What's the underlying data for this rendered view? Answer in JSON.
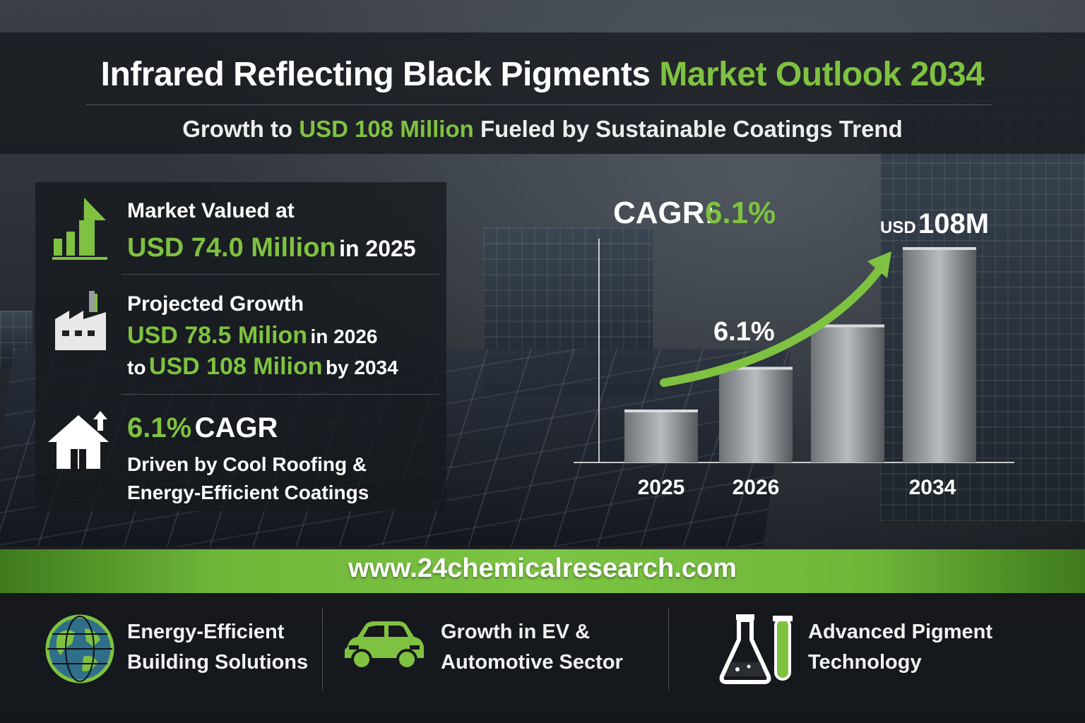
{
  "title": {
    "part1": "Infrared Reflecting Black Pigments",
    "part2": "Market Outlook 2034"
  },
  "subtitle": {
    "pre": "Growth to",
    "highlight": "USD 108 Million",
    "post": "Fueled by Sustainable Coatings Trend"
  },
  "stats": {
    "valued_label": "Market Valued at",
    "valued_value": "USD 74.0 Million",
    "valued_year": "in 2025",
    "growth_label": "Projected Growth",
    "growth_value1": "USD 78.5 Milion",
    "growth_year1": "in 2026",
    "growth_to": "to",
    "growth_value2": "USD 108 Milion",
    "growth_year2": "by 2034",
    "cagr_value": "6.1%",
    "cagr_label": "CAGR",
    "driver_line1": "Driven by Cool Roofing &",
    "driver_line2": "Energy-Efficient Coatings"
  },
  "chart_data": {
    "type": "bar",
    "categories": [
      "2025",
      "2026",
      "2034"
    ],
    "values": [
      74.0,
      78.5,
      108
    ],
    "cagr_label": "CAGR:",
    "cagr_value": "6.1%",
    "arrow_label": "6.1%",
    "end_label_prefix": "USD",
    "end_label_value": "108M",
    "bar_color": "#b9bcbf",
    "arrow_color": "#7fc241"
  },
  "banner": {
    "url": "www.24chemicalresearch.com"
  },
  "footer": [
    {
      "icon": "globe-icon",
      "line1": "Energy-Efficient",
      "line2": "Building Solutions"
    },
    {
      "icon": "car-icon",
      "line1": "Growth in EV &",
      "line2": "Automotive Sector"
    },
    {
      "icon": "flask-icon",
      "line1": "Advanced Pigment",
      "line2": "Technology"
    }
  ],
  "colors": {
    "accent": "#7fc241",
    "dark": "#16181c"
  }
}
